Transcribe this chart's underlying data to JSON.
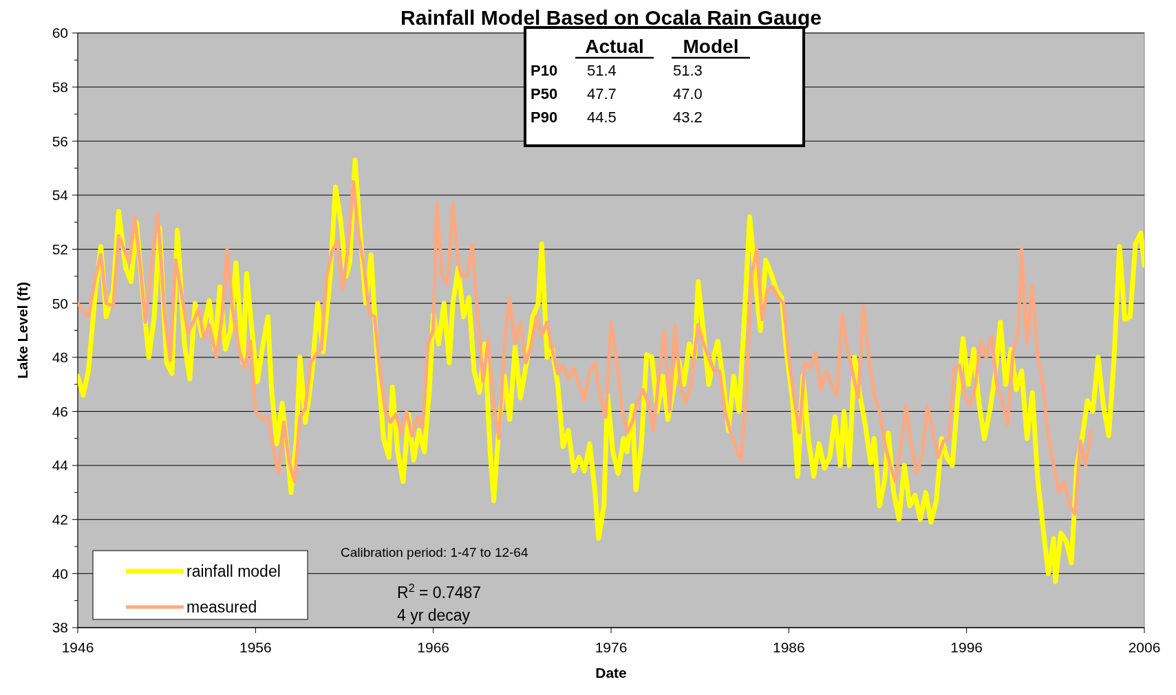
{
  "chart_data": {
    "type": "line",
    "title": "Rainfall Model Based on Ocala Rain Gauge",
    "xlabel": "Date",
    "ylabel": "Lake Level (ft)",
    "xlim": [
      1946,
      2006
    ],
    "xticks": [
      1946,
      1956,
      1966,
      1976,
      1986,
      1996,
      2006
    ],
    "ylim": [
      38,
      60
    ],
    "yticks": [
      38,
      {
        "value": 39,
        "label": null
      },
      40,
      {
        "value": 41,
        "label": null
      },
      42,
      {
        "value": 43,
        "label": null
      },
      44,
      {
        "value": 45,
        "label": null
      },
      46,
      {
        "value": 47,
        "label": null
      },
      48,
      {
        "value": 49,
        "label": null
      },
      50,
      {
        "value": 51,
        "label": null
      },
      52,
      {
        "value": 53,
        "label": null
      },
      54,
      {
        "value": 55,
        "label": null
      },
      56,
      {
        "value": 57,
        "label": null
      },
      58,
      {
        "value": 59,
        "label": null
      },
      60
    ],
    "grid": "y",
    "legend": "bottom left",
    "marker": "none",
    "line_style": "solid",
    "annotations": [
      "Actual",
      "Model",
      "P10",
      "51.4",
      "51.3",
      "P50",
      "47.7",
      "47.0",
      "P90",
      "44.5",
      "43.2",
      "Calibration period: 1-47 to 12-64",
      "R$^{2}$ = 0.7487",
      "4 yr decay"
    ],
    "series": [
      {
        "name": "rainfall model",
        "color": "#ffff00",
        "x": [
          1946.0,
          1946.3,
          1946.6,
          1947.0,
          1947.3,
          1947.6,
          1948.0,
          1948.3,
          1948.7,
          1949.0,
          1949.3,
          1949.7,
          1950.0,
          1950.3,
          1950.6,
          1951.0,
          1951.3,
          1951.6,
          1952.0,
          1952.3,
          1952.6,
          1953.0,
          1953.4,
          1953.7,
          1954.0,
          1954.3,
          1954.6,
          1954.9,
          1955.3,
          1955.5,
          1955.8,
          1956.1,
          1956.4,
          1956.7,
          1956.9,
          1957.2,
          1957.5,
          1957.8,
          1958.0,
          1958.3,
          1958.5,
          1958.8,
          1959.0,
          1959.2,
          1959.5,
          1959.8,
          1960.2,
          1960.5,
          1960.8,
          1961.1,
          1961.3,
          1961.6,
          1961.9,
          1962.2,
          1962.5,
          1962.8,
          1963.2,
          1963.5,
          1963.7,
          1964.0,
          1964.3,
          1964.6,
          1964.9,
          1965.2,
          1965.5,
          1965.8,
          1966.0,
          1966.3,
          1966.6,
          1966.9,
          1967.1,
          1967.4,
          1967.7,
          1968.0,
          1968.3,
          1968.6,
          1968.9,
          1969.2,
          1969.4,
          1969.7,
          1970.0,
          1970.3,
          1970.6,
          1970.9,
          1971.3,
          1971.6,
          1971.9,
          1972.1,
          1972.4,
          1972.7,
          1973.0,
          1973.3,
          1973.6,
          1973.9,
          1974.2,
          1974.5,
          1974.8,
          1975.1,
          1975.3,
          1975.6,
          1975.8,
          1976.1,
          1976.4,
          1976.7,
          1976.9,
          1977.2,
          1977.4,
          1977.7,
          1978.0,
          1978.3,
          1978.6,
          1978.9,
          1979.2,
          1979.5,
          1979.8,
          1980.1,
          1980.4,
          1980.7,
          1980.9,
          1981.2,
          1981.5,
          1981.8,
          1982.0,
          1982.3,
          1982.6,
          1982.9,
          1983.2,
          1983.5,
          1983.8,
          1984.1,
          1984.4,
          1984.7,
          1985.0,
          1985.3,
          1985.6,
          1985.9,
          1986.2,
          1986.5,
          1986.8,
          1987.1,
          1987.4,
          1987.7,
          1988.0,
          1988.3,
          1988.6,
          1988.9,
          1989.1,
          1989.4,
          1989.7,
          1990.0,
          1990.3,
          1990.6,
          1990.8,
          1991.1,
          1991.4,
          1991.6,
          1991.9,
          1992.2,
          1992.5,
          1992.8,
          1993.1,
          1993.4,
          1993.7,
          1994.0,
          1994.3,
          1994.6,
          1994.9,
          1995.2,
          1995.5,
          1995.8,
          1996.1,
          1996.4,
          1996.7,
          1997.0,
          1997.3,
          1997.6,
          1997.9,
          1998.2,
          1998.5,
          1998.8,
          1999.1,
          1999.4,
          1999.7,
          2000.0,
          2000.3,
          2000.6,
          2000.9,
          2001.0,
          2001.3,
          2001.6,
          2001.9,
          2002.2,
          2002.5,
          2002.8,
          2003.1,
          2003.4,
          2003.7,
          2004.0,
          2004.3,
          2004.6,
          2004.9,
          2005.2,
          2005.5,
          2005.8,
          2006.0
        ],
        "values": [
          47.3,
          46.6,
          47.5,
          50.5,
          52.1,
          49.5,
          50.5,
          53.4,
          51.3,
          50.8,
          53.0,
          50.0,
          48.0,
          49.5,
          52.8,
          47.8,
          47.4,
          52.7,
          48.5,
          47.2,
          50.0,
          48.8,
          50.1,
          48.3,
          50.6,
          48.3,
          49.0,
          51.5,
          47.8,
          51.1,
          49.0,
          47.1,
          48.4,
          49.5,
          46.8,
          44.8,
          46.3,
          44.5,
          43.0,
          45.0,
          48.0,
          45.6,
          46.5,
          47.6,
          50.0,
          48.2,
          51.0,
          54.3,
          53.0,
          51.0,
          51.5,
          55.3,
          52.5,
          50.0,
          51.8,
          48.5,
          45.0,
          44.3,
          46.9,
          44.5,
          43.4,
          45.9,
          44.2,
          45.3,
          44.5,
          47.0,
          49.6,
          48.5,
          50.0,
          47.8,
          50.0,
          51.3,
          49.5,
          50.2,
          47.5,
          46.7,
          48.5,
          44.5,
          42.7,
          45.5,
          47.3,
          45.7,
          48.4,
          46.5,
          48.0,
          49.5,
          50.0,
          52.2,
          48.0,
          48.3,
          47.0,
          44.7,
          45.3,
          43.8,
          44.3,
          43.8,
          44.8,
          43.0,
          41.3,
          42.5,
          46.6,
          44.5,
          43.7,
          45.0,
          44.5,
          46.2,
          43.1,
          44.7,
          48.1,
          48.0,
          46.0,
          47.3,
          45.7,
          46.8,
          47.9,
          47.0,
          48.5,
          48.0,
          50.8,
          48.9,
          47.0,
          48.1,
          48.6,
          47.2,
          45.3,
          47.3,
          46.0,
          49.5,
          53.2,
          51.0,
          49.0,
          51.6,
          51.1,
          50.5,
          50.2,
          48.0,
          46.5,
          43.6,
          47.3,
          45.0,
          43.6,
          44.8,
          43.9,
          44.3,
          45.8,
          44.0,
          46.0,
          44.0,
          48.0,
          46.6,
          45.5,
          44.1,
          45.0,
          42.5,
          43.5,
          45.2,
          43.0,
          42.0,
          44.0,
          42.5,
          42.9,
          42.0,
          43.0,
          41.9,
          42.7,
          45.0,
          44.3,
          44.0,
          46.5,
          48.7,
          47.0,
          48.3,
          46.3,
          45.0,
          46.0,
          47.3,
          49.3,
          47.0,
          48.3,
          46.8,
          47.5,
          45.0,
          46.7,
          43.5,
          41.7,
          40.0,
          41.3,
          39.7,
          41.5,
          41.2,
          40.4,
          44.0,
          45.0,
          46.4,
          46.0,
          48.0,
          46.2,
          45.1,
          48.0,
          52.1,
          49.4,
          49.5,
          52.2,
          52.6,
          51.4
        ]
      },
      {
        "name": "measured",
        "color": "#ffa980",
        "x": [
          1946.0,
          1946.3,
          1946.6,
          1947.0,
          1947.3,
          1947.6,
          1948.0,
          1948.3,
          1948.6,
          1948.9,
          1949.2,
          1949.5,
          1949.8,
          1950.2,
          1950.5,
          1950.9,
          1951.2,
          1951.5,
          1951.8,
          1952.2,
          1952.5,
          1952.8,
          1953.1,
          1953.4,
          1953.8,
          1954.1,
          1954.4,
          1954.7,
          1955.1,
          1955.4,
          1955.7,
          1956.0,
          1956.4,
          1956.7,
          1957.0,
          1957.3,
          1957.6,
          1957.9,
          1958.2,
          1958.5,
          1958.8,
          1959.1,
          1959.4,
          1959.7,
          1960.0,
          1960.3,
          1960.6,
          1960.9,
          1961.2,
          1961.5,
          1961.8,
          1962.1,
          1962.4,
          1962.7,
          1963.0,
          1963.3,
          1963.6,
          1963.9,
          1964.2,
          1964.5,
          1964.8,
          1965.1,
          1965.4,
          1965.7,
          1966.0,
          1966.2,
          1966.5,
          1966.8,
          1967.1,
          1967.4,
          1967.6,
          1967.9,
          1968.2,
          1968.5,
          1968.8,
          1969.1,
          1969.4,
          1969.7,
          1970.0,
          1970.3,
          1970.6,
          1970.9,
          1971.2,
          1971.5,
          1971.8,
          1972.1,
          1972.4,
          1972.7,
          1973.0,
          1973.3,
          1973.6,
          1973.9,
          1974.2,
          1974.5,
          1974.8,
          1975.1,
          1975.4,
          1975.7,
          1976.0,
          1976.3,
          1976.6,
          1976.9,
          1977.2,
          1977.5,
          1977.8,
          1978.1,
          1978.4,
          1978.7,
          1979.0,
          1979.3,
          1979.6,
          1979.9,
          1980.2,
          1980.5,
          1980.9,
          1981.2,
          1981.5,
          1981.8,
          1982.1,
          1982.4,
          1982.7,
          1983.0,
          1983.3,
          1983.6,
          1983.9,
          1984.2,
          1984.5,
          1984.8,
          1985.1,
          1985.4,
          1985.7,
          1986.0,
          1986.3,
          1986.6,
          1986.9,
          1987.2,
          1987.5,
          1987.8,
          1988.1,
          1988.4,
          1988.7,
          1989.0,
          1989.3,
          1989.6,
          1989.9,
          1990.2,
          1990.5,
          1990.8,
          1991.1,
          1991.4,
          1991.7,
          1992.0,
          1992.3,
          1992.6,
          1992.9,
          1993.2,
          1993.5,
          1993.8,
          1994.1,
          1994.4,
          1994.7,
          1995.0,
          1995.3,
          1995.6,
          1995.9,
          1996.2,
          1996.5,
          1996.8,
          1997.1,
          1997.4,
          1997.7,
          1998.0,
          1998.3,
          1998.6,
          1998.9,
          1999.1,
          1999.4,
          1999.7,
          2000.0,
          2000.3,
          2000.6,
          2000.9,
          2001.2,
          2001.5,
          2001.8,
          2002.1,
          2002.4,
          2002.7,
          2003.0
        ],
        "values": [
          50.0,
          49.7,
          49.5,
          51.0,
          51.8,
          50.0,
          49.9,
          52.5,
          52.0,
          51.5,
          53.2,
          51.5,
          49.3,
          51.7,
          53.3,
          49.5,
          47.9,
          51.6,
          50.5,
          48.9,
          49.3,
          49.8,
          48.7,
          49.2,
          48.0,
          49.4,
          52.0,
          49.8,
          48.2,
          47.6,
          48.6,
          46.0,
          45.7,
          45.8,
          44.6,
          43.7,
          45.6,
          44.1,
          43.4,
          45.8,
          46.1,
          47.8,
          48.1,
          48.3,
          51.0,
          51.9,
          52.3,
          50.5,
          52.0,
          54.5,
          52.5,
          51.4,
          49.6,
          49.5,
          47.5,
          46.0,
          45.6,
          45.9,
          45.2,
          46.0,
          45.1,
          45.8,
          45.4,
          48.5,
          49.0,
          53.7,
          51.0,
          50.7,
          53.7,
          51.5,
          51.0,
          51.0,
          52.2,
          49.5,
          47.1,
          48.7,
          46.2,
          45.0,
          48.5,
          50.2,
          48.5,
          49.3,
          47.8,
          48.4,
          49.5,
          48.8,
          49.3,
          48.3,
          47.4,
          47.7,
          47.2,
          47.6,
          47.0,
          46.4,
          47.5,
          47.8,
          46.5,
          45.8,
          49.3,
          48.0,
          46.2,
          45.2,
          45.6,
          46.4,
          46.8,
          46.3,
          45.3,
          47.4,
          49.0,
          46.0,
          49.2,
          47.0,
          46.3,
          47.0,
          49.2,
          48.5,
          48.0,
          47.5,
          47.5,
          46.0,
          45.3,
          44.7,
          44.2,
          46.5,
          51.0,
          52.0,
          49.4,
          50.5,
          50.6,
          50.2,
          50.0,
          48.0,
          46.5,
          45.2,
          47.8,
          47.6,
          48.2,
          46.8,
          47.5,
          47.0,
          46.6,
          49.6,
          48.3,
          47.4,
          46.5,
          49.9,
          48.0,
          46.6,
          46.0,
          44.8,
          44.0,
          43.4,
          44.7,
          46.2,
          44.7,
          43.7,
          44.4,
          46.2,
          45.2,
          44.3,
          44.9,
          45.0,
          47.6,
          47.7,
          46.6,
          46.2,
          47.0,
          48.6,
          48.0,
          48.8,
          47.0,
          46.4,
          45.5,
          48.1,
          49.0,
          52.0,
          48.5,
          50.7,
          48.0,
          47.0,
          45.0,
          44.0,
          43.0,
          43.4,
          42.5,
          42.2,
          44.9,
          44.0,
          45.3
        ]
      }
    ]
  }
}
